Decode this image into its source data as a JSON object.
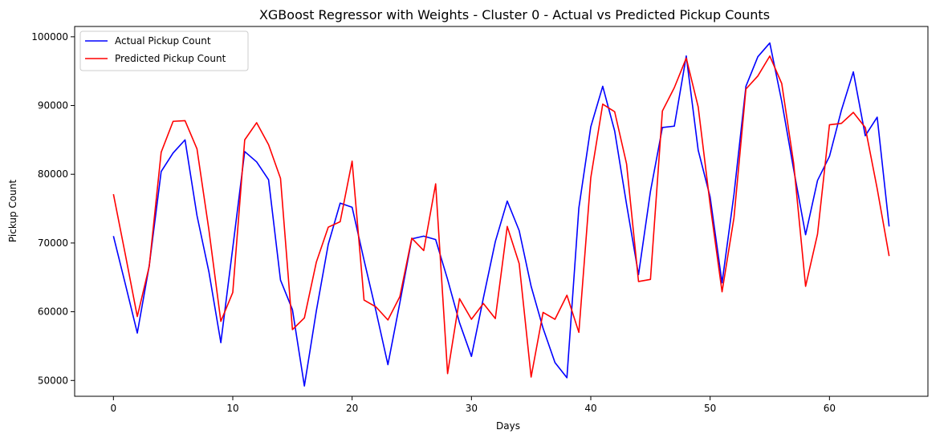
{
  "chart_data": {
    "type": "line",
    "title": "XGBoost Regressor with Weights - Cluster 0 - Actual vs Predicted Pickup Counts",
    "xlabel": "Days",
    "ylabel": "Pickup Count",
    "xlim": [
      -3.25,
      68.25
    ],
    "ylim": [
      47700,
      101500
    ],
    "xticks": [
      0,
      10,
      20,
      30,
      40,
      50,
      60
    ],
    "yticks": [
      50000,
      60000,
      70000,
      80000,
      90000,
      100000
    ],
    "xtick_labels": [
      "0",
      "10",
      "20",
      "30",
      "40",
      "50",
      "60"
    ],
    "ytick_labels": [
      "50000",
      "60000",
      "70000",
      "80000",
      "90000",
      "100000"
    ],
    "grid": false,
    "legend_position": "top-left",
    "x": [
      0,
      1,
      2,
      3,
      4,
      5,
      6,
      7,
      8,
      9,
      10,
      11,
      12,
      13,
      14,
      15,
      16,
      17,
      18,
      19,
      20,
      21,
      22,
      23,
      24,
      25,
      26,
      27,
      28,
      29,
      30,
      31,
      32,
      33,
      34,
      35,
      36,
      37,
      38,
      39,
      40,
      41,
      42,
      43,
      44,
      45,
      46,
      47,
      48,
      49,
      50,
      51,
      52,
      53,
      54,
      55,
      56,
      57,
      58,
      59,
      60,
      61,
      62,
      63,
      64,
      65
    ],
    "series": [
      {
        "name": "Actual Pickup Count",
        "color": "#0000ff",
        "values": [
          71000,
          64000,
          56900,
          66700,
          80400,
          83100,
          85000,
          74000,
          65800,
          55500,
          69300,
          83300,
          81800,
          79200,
          64600,
          60300,
          49200,
          60100,
          69800,
          75800,
          75200,
          67500,
          60100,
          52300,
          61300,
          70600,
          71000,
          70500,
          64700,
          58400,
          53500,
          62000,
          70200,
          76100,
          71800,
          63700,
          57600,
          52600,
          50400,
          75100,
          86900,
          92800,
          86300,
          75600,
          65400,
          77500,
          86800,
          87000,
          97200,
          83500,
          76700,
          64200,
          77100,
          92800,
          97100,
          99100,
          90600,
          80700,
          71200,
          79100,
          82600,
          89300,
          94900,
          85600,
          88300,
          72400
        ]
      },
      {
        "name": "Predicted Pickup Count",
        "color": "#ff0000",
        "values": [
          77100,
          68300,
          59300,
          66600,
          83200,
          87700,
          87800,
          83700,
          71900,
          58600,
          62800,
          85000,
          87500,
          84300,
          79400,
          57400,
          59100,
          67200,
          72300,
          73100,
          81900,
          61700,
          60700,
          58800,
          62200,
          70700,
          68900,
          78600,
          51000,
          61900,
          58900,
          61200,
          59000,
          72400,
          67000,
          50500,
          59900,
          58900,
          62400,
          57000,
          79500,
          90200,
          89100,
          81500,
          64400,
          64700,
          89200,
          92600,
          96900,
          89800,
          75600,
          62900,
          73700,
          92400,
          94300,
          97200,
          93200,
          81600,
          63700,
          71300,
          87200,
          87400,
          89000,
          86800,
          77900,
          68100
        ]
      }
    ]
  }
}
